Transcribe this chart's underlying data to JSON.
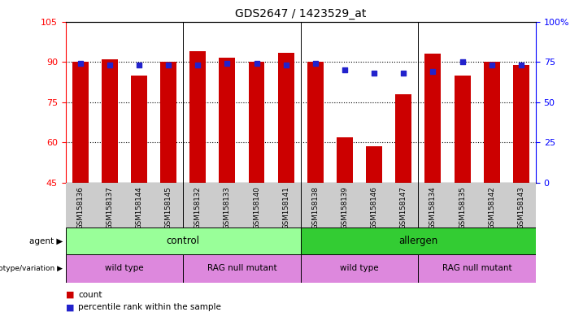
{
  "title": "GDS2647 / 1423529_at",
  "samples": [
    "GSM158136",
    "GSM158137",
    "GSM158144",
    "GSM158145",
    "GSM158132",
    "GSM158133",
    "GSM158140",
    "GSM158141",
    "GSM158138",
    "GSM158139",
    "GSM158146",
    "GSM158147",
    "GSM158134",
    "GSM158135",
    "GSM158142",
    "GSM158143"
  ],
  "counts": [
    90,
    91,
    85,
    90,
    94,
    91.5,
    90,
    93.5,
    90,
    62,
    58.5,
    78,
    93,
    85,
    90,
    89
  ],
  "percentiles": [
    74,
    73,
    73,
    73,
    73,
    74,
    74,
    73,
    74,
    70,
    68,
    68,
    69,
    75,
    73,
    73
  ],
  "ylim_left": [
    45,
    105
  ],
  "ylim_right": [
    0,
    100
  ],
  "yticks_left": [
    45,
    60,
    75,
    90,
    105
  ],
  "yticks_right": [
    0,
    25,
    50,
    75,
    100
  ],
  "ytick_labels_right": [
    "0",
    "25",
    "50",
    "75",
    "100%"
  ],
  "bar_color": "#cc0000",
  "dot_color": "#2222cc",
  "agent_color_control": "#99ff99",
  "agent_color_allergen": "#33cc33",
  "genotype_color": "#dd88dd",
  "legend_count_color": "#cc0000",
  "legend_pct_color": "#2222cc",
  "grid_yticks": [
    60,
    75,
    90
  ],
  "group_separators": [
    3.5,
    7.5,
    11.5
  ]
}
